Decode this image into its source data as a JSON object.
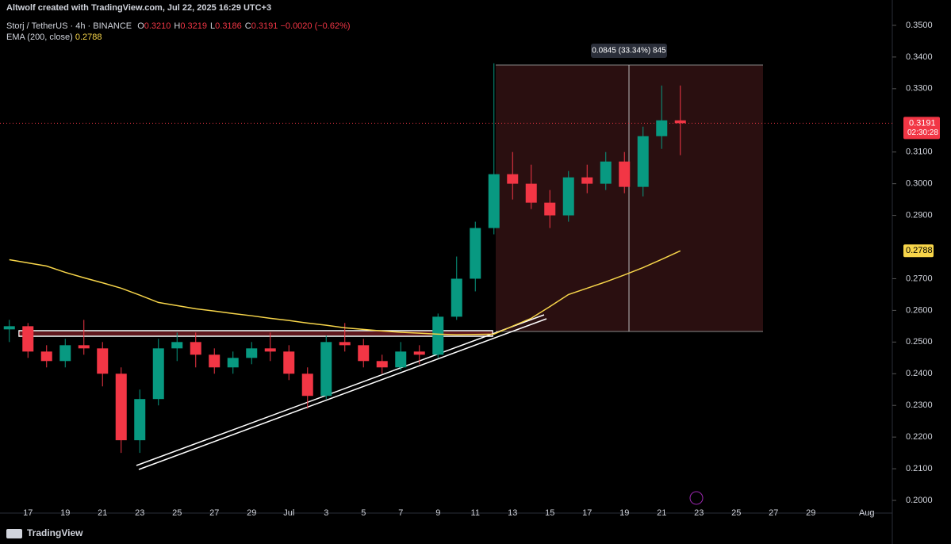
{
  "chart_data": {
    "type": "candlestick",
    "title": "Altwolf created with TradingView.com, Jul 22, 2025 16:29 UTC+3",
    "symbol": "Storj / TetherUS · 4h · BINANCE",
    "ohlc_legend": [
      {
        "key": "O",
        "value": 0.321,
        "label": "0.3210"
      },
      {
        "key": "H",
        "value": 0.3219,
        "label": "0.3219"
      },
      {
        "key": "L",
        "value": 0.3186,
        "label": "0.3186"
      },
      {
        "key": "C",
        "value": 0.3191,
        "label": "0.3191"
      }
    ],
    "change": "−0.0020 (−0.62%)",
    "categories": [
      null,
      "17",
      null,
      "19",
      null,
      "21",
      null,
      "23",
      null,
      "25",
      null,
      "27",
      null,
      "29",
      null,
      "Jul",
      null,
      "3",
      null,
      "5",
      null,
      "7",
      null,
      "9",
      null,
      "11",
      null,
      "13",
      null,
      "15",
      null,
      "17",
      null,
      "19",
      null,
      "21",
      null,
      "23",
      null,
      "25",
      null,
      "27",
      null,
      "29",
      null,
      null,
      "Aug"
    ],
    "open": [
      0.254,
      0.255,
      0.247,
      0.244,
      0.249,
      0.248,
      0.24,
      0.219,
      0.232,
      0.248,
      0.25,
      0.246,
      0.242,
      0.245,
      0.248,
      0.247,
      0.24,
      0.233,
      0.25,
      0.249,
      0.244,
      0.242,
      0.247,
      0.246,
      0.258,
      0.27,
      0.286,
      0.303,
      0.3,
      0.294,
      0.29,
      0.302,
      0.3,
      0.307,
      0.299,
      0.315,
      0.32,
      null,
      null,
      null,
      null,
      null,
      null,
      null,
      null,
      null,
      null
    ],
    "high": [
      0.257,
      0.256,
      0.249,
      0.251,
      0.257,
      0.25,
      0.242,
      0.235,
      0.251,
      0.253,
      0.253,
      0.248,
      0.247,
      0.25,
      0.253,
      0.249,
      0.242,
      0.252,
      0.256,
      0.251,
      0.246,
      0.25,
      0.249,
      0.259,
      0.277,
      0.288,
      0.338,
      0.31,
      0.306,
      0.298,
      0.304,
      0.306,
      0.31,
      0.31,
      0.318,
      0.331,
      0.331,
      null,
      null,
      null,
      null,
      null,
      null,
      null,
      null,
      null,
      null
    ],
    "low": [
      0.25,
      0.245,
      0.242,
      0.242,
      0.246,
      0.236,
      0.215,
      0.215,
      0.23,
      0.244,
      0.242,
      0.24,
      0.24,
      0.243,
      0.244,
      0.238,
      0.229,
      0.232,
      0.247,
      0.242,
      0.24,
      0.241,
      0.243,
      0.245,
      0.257,
      0.266,
      0.284,
      0.295,
      0.292,
      0.286,
      0.288,
      0.297,
      0.298,
      0.297,
      0.296,
      0.311,
      0.309,
      null,
      null,
      null,
      null,
      null,
      null,
      null,
      null,
      null,
      null
    ],
    "close": [
      0.255,
      0.247,
      0.244,
      0.249,
      0.248,
      0.24,
      0.219,
      0.232,
      0.248,
      0.25,
      0.246,
      0.242,
      0.245,
      0.248,
      0.247,
      0.24,
      0.233,
      0.25,
      0.249,
      0.244,
      0.242,
      0.247,
      0.246,
      0.258,
      0.27,
      0.286,
      0.303,
      0.3,
      0.294,
      0.29,
      0.302,
      0.3,
      0.307,
      0.299,
      0.315,
      0.32,
      0.3191,
      null,
      null,
      null,
      null,
      null,
      null,
      null,
      null,
      null,
      null
    ],
    "up_color": "#089981",
    "down_color": "#f23645",
    "series": [
      {
        "name": "EMA (200, close)",
        "color": "#f7d54a",
        "values": [
          0.276,
          0.275,
          0.274,
          0.272,
          0.2703,
          0.2687,
          0.267,
          0.2648,
          0.2625,
          0.2615,
          0.2605,
          0.2598,
          0.259,
          0.2583,
          0.2575,
          0.2568,
          0.256,
          0.2553,
          0.2545,
          0.254,
          0.2535,
          0.2531,
          0.2528,
          0.2525,
          0.2523,
          0.2524,
          0.2525,
          0.255,
          0.2575,
          0.2612,
          0.265,
          0.267,
          0.269,
          0.2712,
          0.2735,
          0.2761,
          0.2788,
          null,
          null,
          null,
          null,
          null,
          null,
          null,
          null,
          null,
          null
        ],
        "last": {
          "value": 0.2788,
          "label": "0.2788"
        }
      }
    ],
    "last_price": {
      "value": 0.3191,
      "label": "0.3191"
    },
    "countdown": "02:30:28",
    "measure_label": "0.0845 (33.34%) 845",
    "brand": "TradingView",
    "ylim": [
      0.196,
      0.358
    ],
    "yticks": [
      {
        "value": 0.35,
        "label": "0.3500"
      },
      {
        "value": 0.34,
        "label": "0.3400"
      },
      {
        "value": 0.33,
        "label": "0.3300"
      },
      {
        "value": 0.31,
        "label": "0.3100"
      },
      {
        "value": 0.3,
        "label": "0.3000"
      },
      {
        "value": 0.29,
        "label": "0.2900"
      },
      {
        "value": 0.27,
        "label": "0.2700"
      },
      {
        "value": 0.26,
        "label": "0.2600"
      },
      {
        "value": 0.25,
        "label": "0.2500"
      },
      {
        "value": 0.24,
        "label": "0.2400"
      },
      {
        "value": 0.23,
        "label": "0.2300"
      },
      {
        "value": 0.22,
        "label": "0.2200"
      },
      {
        "value": 0.21,
        "label": "0.2100"
      },
      {
        "value": 0.2,
        "label": "0.2000"
      }
    ]
  }
}
